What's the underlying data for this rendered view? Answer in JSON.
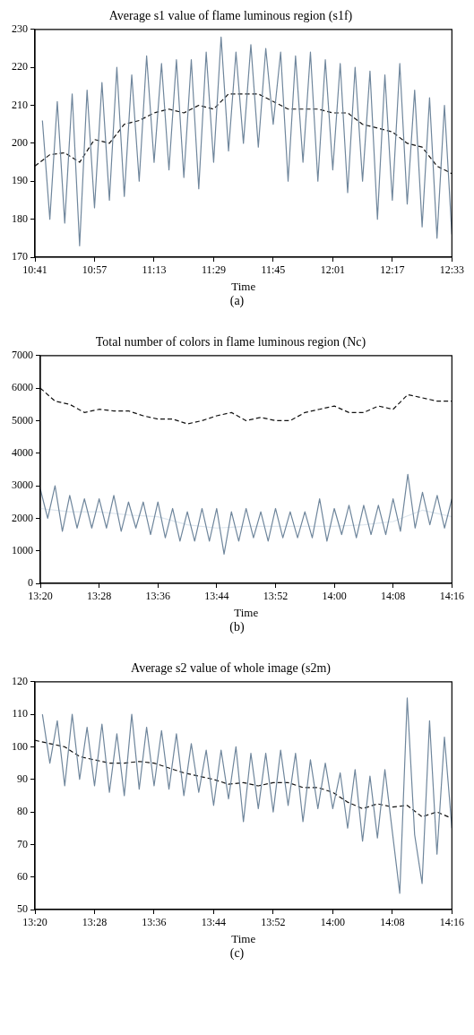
{
  "chart_data": [
    {
      "type": "line",
      "title": "Average s1 value of flame luminous region (s1f)",
      "xlabel": "Time",
      "annotations": [
        "(a)"
      ],
      "xlim": [
        10.6833,
        12.55
      ],
      "xticks": [
        {
          "value": 10.6833,
          "label": "10:41"
        },
        {
          "value": 10.95,
          "label": "10:57"
        },
        {
          "value": 11.2167,
          "label": "11:13"
        },
        {
          "value": 11.4833,
          "label": "11:29"
        },
        {
          "value": 11.75,
          "label": "11:45"
        },
        {
          "value": 12.0167,
          "label": "12:01"
        },
        {
          "value": 12.2833,
          "label": "12:17"
        },
        {
          "value": 12.55,
          "label": "12:33"
        }
      ],
      "ylim": [
        170,
        230
      ],
      "yticks": [
        170,
        180,
        190,
        200,
        210,
        220,
        230
      ],
      "series": [
        {
          "color": "#6f869c",
          "line_style": "solid",
          "x": [
            10.7167,
            10.75,
            10.7833,
            10.8167,
            10.85,
            10.8833,
            10.9167,
            10.95,
            10.9833,
            11.0167,
            11.05,
            11.0833,
            11.1167,
            11.15,
            11.1833,
            11.2167,
            11.25,
            11.2833,
            11.3167,
            11.35,
            11.3833,
            11.4167,
            11.45,
            11.4833,
            11.5167,
            11.55,
            11.5833,
            11.6167,
            11.65,
            11.6833,
            11.7167,
            11.75,
            11.7833,
            11.8167,
            11.85,
            11.8833,
            11.9167,
            11.95,
            11.9833,
            12.0167,
            12.05,
            12.0833,
            12.1167,
            12.15,
            12.1833,
            12.2167,
            12.25,
            12.2833,
            12.3167,
            12.35,
            12.3833,
            12.4167,
            12.45,
            12.4833,
            12.5167,
            12.55
          ],
          "values": [
            206,
            180,
            211,
            179,
            213,
            173,
            214,
            183,
            216,
            185,
            220,
            186,
            218,
            190,
            223,
            195,
            221,
            193,
            222,
            191,
            222,
            188,
            224,
            195,
            228,
            198,
            224,
            200,
            226,
            199,
            225,
            205,
            224,
            190,
            223,
            195,
            224,
            190,
            222,
            193,
            221,
            187,
            220,
            190,
            219,
            180,
            218,
            185,
            221,
            184,
            214,
            178,
            212,
            175,
            210,
            176
          ]
        },
        {
          "color": "#111111",
          "line_style": "dashed",
          "x": [
            10.6833,
            10.75,
            10.8167,
            10.8833,
            10.95,
            11.0167,
            11.0833,
            11.15,
            11.2167,
            11.2833,
            11.35,
            11.4167,
            11.4833,
            11.55,
            11.6167,
            11.6833,
            11.75,
            11.8167,
            11.8833,
            11.95,
            12.0167,
            12.0833,
            12.15,
            12.2167,
            12.2833,
            12.35,
            12.4167,
            12.4833,
            12.55
          ],
          "values": [
            194,
            197,
            197.5,
            195,
            201,
            200,
            205,
            206,
            208,
            209,
            208,
            210,
            209,
            213,
            213,
            213,
            211,
            209,
            209,
            209,
            208,
            208,
            205,
            204,
            203,
            200,
            199,
            194,
            192
          ]
        }
      ]
    },
    {
      "type": "line",
      "title": "Total number of colors in flame luminous region (Nc)",
      "xlabel": "Time",
      "annotations": [
        "(b)"
      ],
      "xlim": [
        13.3333,
        14.2667
      ],
      "xticks": [
        {
          "value": 13.3333,
          "label": "13:20"
        },
        {
          "value": 13.4667,
          "label": "13:28"
        },
        {
          "value": 13.6,
          "label": "13:36"
        },
        {
          "value": 13.7333,
          "label": "13:44"
        },
        {
          "value": 13.8667,
          "label": "13:52"
        },
        {
          "value": 14.0,
          "label": "14:00"
        },
        {
          "value": 14.1333,
          "label": "14:08"
        },
        {
          "value": 14.2667,
          "label": "14:16"
        }
      ],
      "ylim": [
        0,
        7000
      ],
      "yticks": [
        0,
        1000,
        2000,
        3000,
        4000,
        5000,
        6000,
        7000
      ],
      "series": [
        {
          "color": "#6f869c",
          "line_style": "solid",
          "x": [
            13.3333,
            13.35,
            13.3667,
            13.3833,
            13.4,
            13.4167,
            13.4333,
            13.45,
            13.4667,
            13.4833,
            13.5,
            13.5167,
            13.5333,
            13.55,
            13.5667,
            13.5833,
            13.6,
            13.6167,
            13.6333,
            13.65,
            13.6667,
            13.6833,
            13.7,
            13.7167,
            13.7333,
            13.75,
            13.7667,
            13.7833,
            13.8,
            13.8167,
            13.8333,
            13.85,
            13.8667,
            13.8833,
            13.9,
            13.9167,
            13.9333,
            13.95,
            13.9667,
            13.9833,
            14.0,
            14.0167,
            14.0333,
            14.05,
            14.0667,
            14.0833,
            14.1,
            14.1167,
            14.1333,
            14.15,
            14.1667,
            14.1833,
            14.2,
            14.2167,
            14.2333,
            14.25,
            14.2667
          ],
          "values": [
            2900,
            2000,
            3000,
            1600,
            2700,
            1700,
            2600,
            1700,
            2600,
            1700,
            2700,
            1600,
            2500,
            1700,
            2500,
            1500,
            2500,
            1400,
            2300,
            1300,
            2200,
            1300,
            2300,
            1300,
            2300,
            900,
            2200,
            1300,
            2300,
            1400,
            2200,
            1300,
            2300,
            1400,
            2200,
            1400,
            2200,
            1400,
            2600,
            1300,
            2300,
            1500,
            2400,
            1400,
            2400,
            1500,
            2400,
            1500,
            2600,
            1600,
            3350,
            1700,
            2800,
            1800,
            2700,
            1700,
            2600
          ]
        },
        {
          "color": "#dde6ee",
          "line_style": "solid",
          "x": [
            13.3333,
            13.4,
            13.4667,
            13.5333,
            13.6,
            13.6667,
            13.7333,
            13.8,
            13.8667,
            13.9333,
            14.0,
            14.0667,
            14.1333,
            14.2,
            14.2667
          ],
          "values": [
            2300,
            2200,
            2200,
            2100,
            2050,
            1800,
            1700,
            1750,
            1750,
            1750,
            1750,
            1800,
            1900,
            2250,
            2050
          ]
        },
        {
          "color": "#111111",
          "line_style": "dashed",
          "x": [
            13.3333,
            13.3667,
            13.4,
            13.4333,
            13.4667,
            13.5,
            13.5333,
            13.5667,
            13.6,
            13.6333,
            13.6667,
            13.7,
            13.7333,
            13.7667,
            13.8,
            13.8333,
            13.8667,
            13.9,
            13.9333,
            13.9667,
            14.0,
            14.0333,
            14.0667,
            14.1,
            14.1333,
            14.1667,
            14.2,
            14.2333,
            14.2667
          ],
          "values": [
            6000,
            5600,
            5500,
            5250,
            5350,
            5300,
            5300,
            5150,
            5050,
            5050,
            4900,
            5000,
            5150,
            5250,
            5000,
            5100,
            5000,
            5000,
            5250,
            5350,
            5450,
            5250,
            5250,
            5450,
            5350,
            5800,
            5700,
            5600,
            5600
          ]
        }
      ]
    },
    {
      "type": "line",
      "title": "Average s2 value of whole image (s2m)",
      "xlabel": "Time",
      "annotations": [
        "(c)"
      ],
      "xlim": [
        13.3333,
        14.2667
      ],
      "xticks": [
        {
          "value": 13.3333,
          "label": "13:20"
        },
        {
          "value": 13.4667,
          "label": "13:28"
        },
        {
          "value": 13.6,
          "label": "13:36"
        },
        {
          "value": 13.7333,
          "label": "13:44"
        },
        {
          "value": 13.8667,
          "label": "13:52"
        },
        {
          "value": 14.0,
          "label": "14:00"
        },
        {
          "value": 14.1333,
          "label": "14:08"
        },
        {
          "value": 14.2667,
          "label": "14:16"
        }
      ],
      "ylim": [
        50,
        120
      ],
      "yticks": [
        50,
        60,
        70,
        80,
        90,
        100,
        110,
        120
      ],
      "series": [
        {
          "color": "#6f869c",
          "line_style": "solid",
          "x": [
            13.35,
            13.3667,
            13.3833,
            13.4,
            13.4167,
            13.4333,
            13.45,
            13.4667,
            13.4833,
            13.5,
            13.5167,
            13.5333,
            13.55,
            13.5667,
            13.5833,
            13.6,
            13.6167,
            13.6333,
            13.65,
            13.6667,
            13.6833,
            13.7,
            13.7167,
            13.7333,
            13.75,
            13.7667,
            13.7833,
            13.8,
            13.8167,
            13.8333,
            13.85,
            13.8667,
            13.8833,
            13.9,
            13.9167,
            13.9333,
            13.95,
            13.9667,
            13.9833,
            14.0,
            14.0167,
            14.0333,
            14.05,
            14.0667,
            14.0833,
            14.1,
            14.1167,
            14.1333,
            14.15,
            14.1667,
            14.1833,
            14.2,
            14.2167,
            14.2333,
            14.25,
            14.2667
          ],
          "values": [
            110,
            95,
            108,
            88,
            110,
            90,
            106,
            88,
            107,
            86,
            104,
            85,
            110,
            87,
            106,
            88,
            105,
            87,
            104,
            85,
            101,
            86,
            99,
            82,
            99,
            84,
            100,
            77,
            98,
            81,
            98,
            80,
            99,
            82,
            98,
            77,
            96,
            81,
            95,
            81,
            92,
            75,
            93,
            71,
            91,
            72,
            93,
            74,
            55,
            115,
            73,
            58,
            108,
            67,
            103,
            75
          ]
        },
        {
          "color": "#111111",
          "line_style": "dashed",
          "x": [
            13.3333,
            13.3667,
            13.4,
            13.4333,
            13.4667,
            13.5,
            13.5333,
            13.5667,
            13.6,
            13.6333,
            13.6667,
            13.7,
            13.7333,
            13.7667,
            13.8,
            13.8333,
            13.8667,
            13.9,
            13.9333,
            13.9667,
            14.0,
            14.0333,
            14.0667,
            14.1,
            14.1333,
            14.1667,
            14.2,
            14.2333,
            14.2667
          ],
          "values": [
            102,
            101,
            100,
            97,
            96,
            95,
            95,
            95.5,
            95,
            93.5,
            92,
            91,
            90,
            88.5,
            89,
            88,
            89,
            89,
            87.5,
            87.5,
            86,
            83,
            81,
            82.5,
            81.5,
            82,
            78.5,
            80,
            78
          ]
        }
      ]
    }
  ]
}
